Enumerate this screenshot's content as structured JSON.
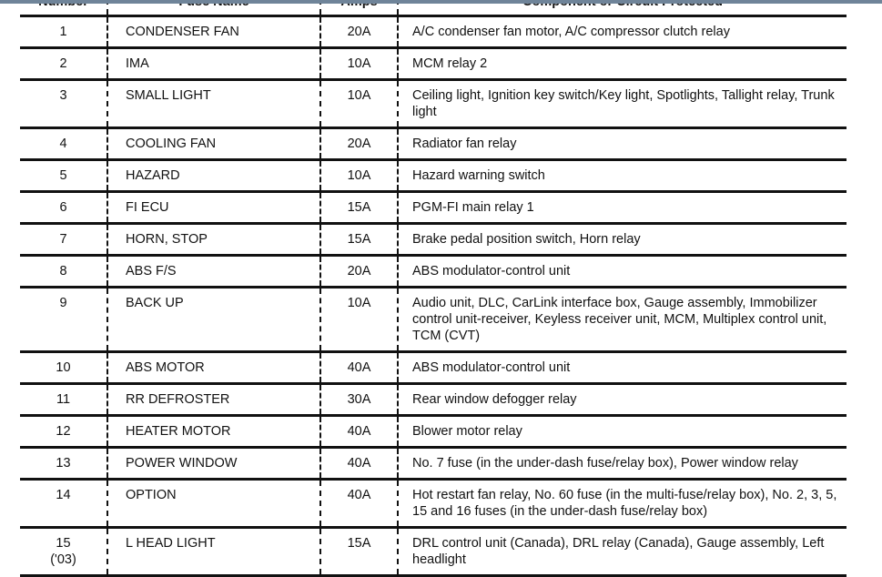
{
  "header": {
    "number": "Number",
    "fuse_name": "Fuse Name",
    "amps": "Amps",
    "component": "Component or Circuit Protected"
  },
  "rows": [
    {
      "number": "1",
      "sub": "",
      "name": "CONDENSER FAN",
      "amps": "20A",
      "component": "A/C condenser fan motor, A/C compressor clutch relay"
    },
    {
      "number": "2",
      "sub": "",
      "name": "IMA",
      "amps": "10A",
      "component": "MCM relay 2"
    },
    {
      "number": "3",
      "sub": "",
      "name": "SMALL LIGHT",
      "amps": "10A",
      "component": "Ceiling light, Ignition key switch/Key light, Spotlights, Tallight relay, Trunk light"
    },
    {
      "number": "4",
      "sub": "",
      "name": "COOLING FAN",
      "amps": "20A",
      "component": "Radiator fan relay"
    },
    {
      "number": "5",
      "sub": "",
      "name": "HAZARD",
      "amps": "10A",
      "component": "Hazard warning switch"
    },
    {
      "number": "6",
      "sub": "",
      "name": "FI ECU",
      "amps": "15A",
      "component": "PGM-FI main relay 1"
    },
    {
      "number": "7",
      "sub": "",
      "name": "HORN, STOP",
      "amps": "15A",
      "component": "Brake pedal position switch, Horn relay"
    },
    {
      "number": "8",
      "sub": "",
      "name": "ABS F/S",
      "amps": "20A",
      "component": "ABS modulator-control unit"
    },
    {
      "number": "9",
      "sub": "",
      "name": "BACK UP",
      "amps": "10A",
      "component": "Audio unit, DLC, CarLink interface box, Gauge assembly, Immobilizer control unit-receiver, Keyless receiver unit, MCM, Multiplex control unit, TCM (CVT)"
    },
    {
      "number": "10",
      "sub": "",
      "name": "ABS MOTOR",
      "amps": "40A",
      "component": "ABS modulator-control unit"
    },
    {
      "number": "11",
      "sub": "",
      "name": "RR DEFROSTER",
      "amps": "30A",
      "component": "Rear window defogger relay"
    },
    {
      "number": "12",
      "sub": "",
      "name": "HEATER MOTOR",
      "amps": "40A",
      "component": "Blower motor relay"
    },
    {
      "number": "13",
      "sub": "",
      "name": "POWER WINDOW",
      "amps": "40A",
      "component": "No. 7 fuse (in the under-dash fuse/relay box), Power window relay"
    },
    {
      "number": "14",
      "sub": "",
      "name": "OPTION",
      "amps": "40A",
      "component": "Hot restart fan relay, No. 60 fuse (in the multi-fuse/relay box), No. 2, 3, 5, 15 and 16 fuses (in the under-dash fuse/relay box)"
    },
    {
      "number": "15",
      "sub": "('03)",
      "name": "L HEAD LIGHT",
      "amps": "15A",
      "component": "DRL control unit (Canada), DRL relay (Canada), Gauge assembly, Left headlight"
    }
  ]
}
